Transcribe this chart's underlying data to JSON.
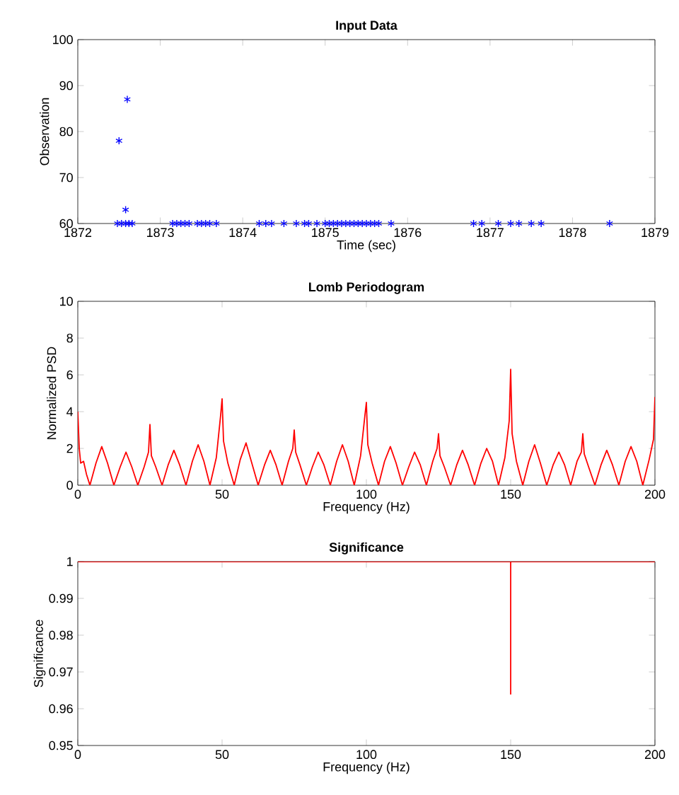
{
  "chart_data": [
    {
      "type": "scatter",
      "title": "Input Data",
      "xlabel": "Time (sec)",
      "ylabel": "Observation",
      "color": "#0000ff",
      "marker": "cross",
      "x": [
        1872.5,
        1872.6,
        1872.58,
        1872.48,
        1872.53,
        1872.58,
        1872.62,
        1872.66,
        1873.15,
        1873.2,
        1873.25,
        1873.3,
        1873.35,
        1873.45,
        1873.5,
        1873.55,
        1873.6,
        1873.68,
        1874.2,
        1874.28,
        1874.35,
        1874.5,
        1874.65,
        1874.75,
        1874.8,
        1874.9,
        1875.0,
        1875.05,
        1875.1,
        1875.15,
        1875.2,
        1875.25,
        1875.3,
        1875.35,
        1875.4,
        1875.45,
        1875.5,
        1875.55,
        1875.6,
        1875.65,
        1875.8,
        1876.8,
        1876.9,
        1877.1,
        1877.25,
        1877.35,
        1877.5,
        1877.62,
        1878.45
      ],
      "values": [
        78,
        87,
        63,
        60,
        60,
        60,
        60,
        60,
        60,
        60,
        60,
        60,
        60,
        60,
        60,
        60,
        60,
        60,
        60,
        60,
        60,
        60,
        60,
        60,
        60,
        60,
        60,
        60,
        60,
        60,
        60,
        60,
        60,
        60,
        60,
        60,
        60,
        60,
        60,
        60,
        60,
        60,
        60,
        60,
        60,
        60,
        60,
        60,
        60
      ],
      "xlim": [
        1872,
        1879
      ],
      "ylim": [
        60,
        100
      ],
      "xticks": [
        1872,
        1873,
        1874,
        1875,
        1876,
        1877,
        1878,
        1879
      ],
      "yticks": [
        60,
        70,
        80,
        90,
        100
      ]
    },
    {
      "type": "line",
      "title": "Lomb Periodogram",
      "xlabel": "Frequency (Hz)",
      "ylabel": "Normalized PSD",
      "color": "#ff0000",
      "x": [
        0,
        0.5,
        1,
        2,
        3,
        4.2,
        6.3,
        8.3,
        10.3,
        12.5,
        14.7,
        16.7,
        18.7,
        20.8,
        23,
        24.5,
        25,
        25.5,
        27,
        29.2,
        31.3,
        33.3,
        35.3,
        37.5,
        39.7,
        41.7,
        43.7,
        45.8,
        48,
        49.5,
        50,
        50.5,
        52,
        54.2,
        56.3,
        58.3,
        60.3,
        62.5,
        64.7,
        66.7,
        68.7,
        70.8,
        73,
        74.5,
        75,
        75.5,
        77,
        79.2,
        81.3,
        83.3,
        85.3,
        87.5,
        89.7,
        91.7,
        93.7,
        95.8,
        98,
        99.5,
        100,
        100.5,
        102,
        104.2,
        106.3,
        108.3,
        110.3,
        112.5,
        114.7,
        116.7,
        118.7,
        120.8,
        123,
        124.5,
        125,
        125.5,
        127,
        129.2,
        131.3,
        133.3,
        135.3,
        137.5,
        139.7,
        141.7,
        143.7,
        145.8,
        148,
        149.5,
        150,
        150.5,
        152,
        154.2,
        156.3,
        158.3,
        160.3,
        162.5,
        164.7,
        166.7,
        168.7,
        170.8,
        173,
        174.5,
        175,
        175.5,
        177,
        179.2,
        181.3,
        183.3,
        185.3,
        187.5,
        189.7,
        191.7,
        193.7,
        195.8,
        198,
        199.5,
        200
      ],
      "values": [
        4.0,
        2.0,
        1.2,
        1.3,
        0.6,
        0,
        1.2,
        2.1,
        1.2,
        0,
        1.0,
        1.8,
        1.0,
        0,
        1.0,
        1.8,
        3.3,
        1.6,
        1.0,
        0,
        1.1,
        1.9,
        1.1,
        0,
        1.3,
        2.2,
        1.3,
        0,
        1.5,
        3.8,
        4.7,
        2.4,
        1.2,
        0,
        1.4,
        2.3,
        1.2,
        0,
        1.1,
        1.9,
        1.1,
        0,
        1.3,
        2.0,
        3.0,
        1.8,
        1.1,
        0,
        1.0,
        1.8,
        1.1,
        0,
        1.3,
        2.2,
        1.3,
        0,
        1.6,
        3.8,
        4.5,
        2.2,
        1.2,
        0,
        1.3,
        2.1,
        1.2,
        0,
        1.0,
        1.8,
        1.1,
        0,
        1.3,
        2.0,
        2.8,
        1.6,
        1.0,
        0,
        1.1,
        1.9,
        1.1,
        0,
        1.2,
        2.0,
        1.3,
        0,
        1.5,
        3.5,
        6.3,
        2.8,
        1.3,
        0,
        1.3,
        2.2,
        1.2,
        0,
        1.1,
        1.8,
        1.1,
        0,
        1.3,
        1.8,
        2.8,
        1.7,
        1.0,
        0,
        1.1,
        1.9,
        1.1,
        0,
        1.3,
        2.1,
        1.3,
        0,
        1.4,
        2.5,
        4.8
      ],
      "xlim": [
        0,
        200
      ],
      "ylim": [
        0,
        10
      ],
      "xticks": [
        0,
        50,
        100,
        150,
        200
      ],
      "yticks": [
        0,
        2,
        4,
        6,
        8,
        10
      ]
    },
    {
      "type": "line",
      "title": "Significance",
      "xlabel": "Frequency (Hz)",
      "ylabel": "Significance",
      "color": "#ff0000",
      "x": [
        0,
        150,
        150,
        150,
        200
      ],
      "values": [
        1,
        1,
        0.964,
        1,
        1
      ],
      "xlim": [
        0,
        200
      ],
      "ylim": [
        0.95,
        1
      ],
      "xticks": [
        0,
        50,
        100,
        150,
        200
      ],
      "yticks": [
        0.95,
        0.96,
        0.97,
        0.98,
        0.99,
        1
      ]
    }
  ]
}
